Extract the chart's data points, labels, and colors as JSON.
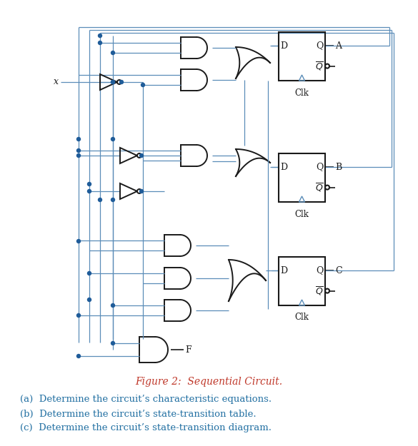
{
  "title": "Figure 2:  Sequential Circuit.",
  "title_color": "#c0392b",
  "title_fontsize": 10,
  "questions": [
    "(a)  Determine the circuit’s characteristic equations.",
    "(b)  Determine the circuit’s state-transition table.",
    "(c)  Determine the circuit’s state-transition diagram."
  ],
  "question_color": "#2471a3",
  "question_fontsize": 9.5,
  "bg_color": "#ffffff",
  "wire_color": "#5b8db8",
  "gate_color": "#1a1a1a",
  "dot_color": "#1f5c99",
  "ff_color": "#1a1a1a",
  "ff_wire_color": "#5b8db8"
}
